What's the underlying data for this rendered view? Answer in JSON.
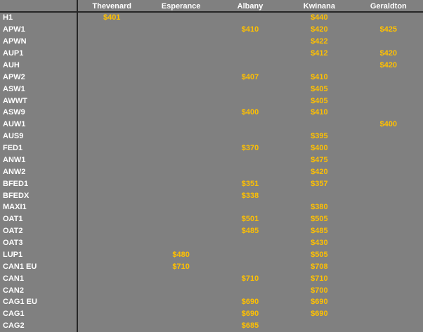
{
  "table": {
    "corner_label": "",
    "columns": [
      "Thevenard",
      "Esperance",
      "Albany",
      "Kwinana",
      "Geraldton"
    ],
    "rows": [
      {
        "label": "H1",
        "values": [
          "$401",
          "",
          "",
          "$440",
          ""
        ]
      },
      {
        "label": "APW1",
        "values": [
          "",
          "",
          "$410",
          "$420",
          "$425"
        ]
      },
      {
        "label": "APWN",
        "values": [
          "",
          "",
          "",
          "$422",
          ""
        ]
      },
      {
        "label": "AUP1",
        "values": [
          "",
          "",
          "",
          "$412",
          "$420"
        ]
      },
      {
        "label": "AUH",
        "values": [
          "",
          "",
          "",
          "",
          "$420"
        ]
      },
      {
        "label": "APW2",
        "values": [
          "",
          "",
          "$407",
          "$410",
          ""
        ]
      },
      {
        "label": "ASW1",
        "values": [
          "",
          "",
          "",
          "$405",
          ""
        ]
      },
      {
        "label": "AWWT",
        "values": [
          "",
          "",
          "",
          "$405",
          ""
        ]
      },
      {
        "label": "ASW9",
        "values": [
          "",
          "",
          "$400",
          "$410",
          ""
        ]
      },
      {
        "label": "AUW1",
        "values": [
          "",
          "",
          "",
          "",
          "$400"
        ]
      },
      {
        "label": "AUS9",
        "values": [
          "",
          "",
          "",
          "$395",
          ""
        ]
      },
      {
        "label": "FED1",
        "values": [
          "",
          "",
          "$370",
          "$400",
          ""
        ]
      },
      {
        "label": "ANW1",
        "values": [
          "",
          "",
          "",
          "$475",
          ""
        ]
      },
      {
        "label": "ANW2",
        "values": [
          "",
          "",
          "",
          "$420",
          ""
        ]
      },
      {
        "label": "BFED1",
        "values": [
          "",
          "",
          "$351",
          "$357",
          ""
        ]
      },
      {
        "label": "BFEDX",
        "values": [
          "",
          "",
          "$338",
          "",
          ""
        ]
      },
      {
        "label": "MAXI1",
        "values": [
          "",
          "",
          "",
          "$380",
          ""
        ]
      },
      {
        "label": "OAT1",
        "values": [
          "",
          "",
          "$501",
          "$505",
          ""
        ]
      },
      {
        "label": "OAT2",
        "values": [
          "",
          "",
          "$485",
          "$485",
          ""
        ]
      },
      {
        "label": "OAT3",
        "values": [
          "",
          "",
          "",
          "$430",
          ""
        ]
      },
      {
        "label": "LUP1",
        "values": [
          "",
          "$480",
          "",
          "$505",
          ""
        ]
      },
      {
        "label": "CAN1 EU",
        "values": [
          "",
          "$710",
          "",
          "$708",
          ""
        ]
      },
      {
        "label": "CAN1",
        "values": [
          "",
          "",
          "$710",
          "$710",
          ""
        ]
      },
      {
        "label": "CAN2",
        "values": [
          "",
          "",
          "",
          "$700",
          ""
        ]
      },
      {
        "label": "CAG1 EU",
        "values": [
          "",
          "",
          "$690",
          "$690",
          ""
        ]
      },
      {
        "label": "CAG1",
        "values": [
          "",
          "",
          "$690",
          "$690",
          ""
        ]
      },
      {
        "label": "CAG2",
        "values": [
          "",
          "",
          "$685",
          "",
          ""
        ]
      }
    ]
  },
  "colors": {
    "background": "#808080",
    "header_text": "#FFFFFF",
    "row_label_text": "#FFFFFF",
    "value_text": "#FFC000",
    "grid_line": "#262626"
  }
}
